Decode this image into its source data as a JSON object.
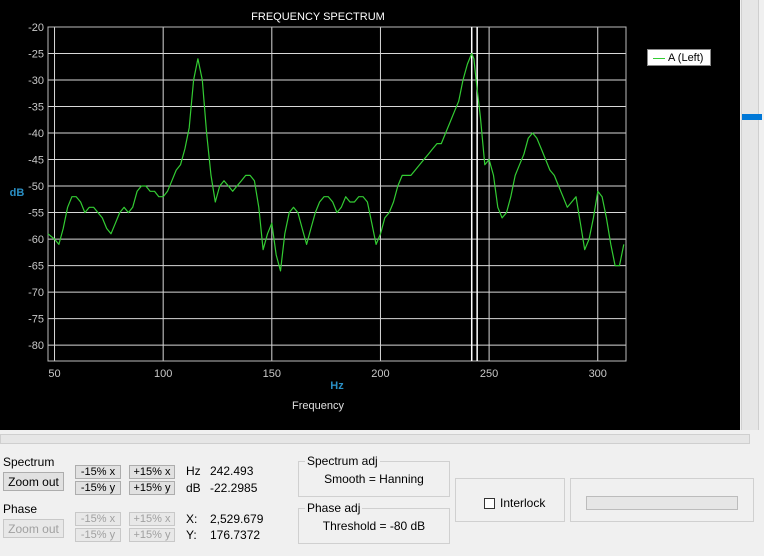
{
  "chart_data": {
    "type": "line",
    "title": "FREQUENCY SPECTRUM",
    "xlabel": "Frequency",
    "x_unit": "Hz",
    "ylabel": "dB",
    "xlim": [
      47,
      313
    ],
    "ylim": [
      -83,
      -20
    ],
    "x_ticks": [
      50,
      100,
      150,
      200,
      250,
      300
    ],
    "y_ticks": [
      -20,
      -25,
      -30,
      -35,
      -40,
      -45,
      -50,
      -55,
      -60,
      -65,
      -70,
      -75,
      -80
    ],
    "grid": true,
    "legend_position": "top-right",
    "cursor_x": [
      242.0,
      244.5
    ],
    "series": [
      {
        "name": "A (Left)",
        "color": "#33cc33",
        "x": [
          47,
          50,
          52,
          54,
          56,
          58,
          60,
          62,
          64,
          66,
          68,
          70,
          72,
          74,
          76,
          78,
          80,
          82,
          84,
          86,
          88,
          90,
          92,
          94,
          96,
          98,
          100,
          102,
          104,
          106,
          108,
          110,
          112,
          114,
          116,
          118,
          120,
          122,
          124,
          126,
          128,
          130,
          132,
          134,
          136,
          138,
          140,
          142,
          144,
          146,
          148,
          150,
          152,
          154,
          156,
          158,
          160,
          162,
          164,
          166,
          168,
          170,
          172,
          174,
          176,
          178,
          180,
          182,
          184,
          186,
          188,
          190,
          192,
          194,
          196,
          198,
          200,
          202,
          204,
          206,
          208,
          210,
          212,
          214,
          216,
          218,
          220,
          222,
          224,
          226,
          228,
          230,
          232,
          234,
          236,
          238,
          240,
          242,
          243,
          244,
          246,
          248,
          250,
          252,
          254,
          256,
          258,
          260,
          262,
          264,
          266,
          268,
          270,
          272,
          274,
          276,
          278,
          280,
          282,
          284,
          286,
          288,
          290,
          292,
          294,
          296,
          298,
          300,
          302,
          304,
          306,
          308,
          310,
          312
        ],
        "y": [
          -59,
          -60,
          -61,
          -58,
          -54,
          -52,
          -52,
          -53,
          -55,
          -54,
          -54,
          -55,
          -56,
          -58,
          -59,
          -57,
          -55,
          -54,
          -55,
          -54,
          -51,
          -50,
          -50,
          -51,
          -51,
          -52,
          -52,
          -51,
          -49,
          -47,
          -46,
          -43,
          -39,
          -30,
          -26,
          -30,
          -40,
          -48,
          -53,
          -50,
          -49,
          -50,
          -51,
          -50,
          -49,
          -48,
          -48,
          -49,
          -54,
          -62,
          -59,
          -57,
          -63,
          -66,
          -59,
          -55,
          -54,
          -55,
          -58,
          -61,
          -58,
          -55,
          -53,
          -52,
          -52,
          -53,
          -55,
          -54,
          -52,
          -53,
          -53,
          -52,
          -52,
          -53,
          -57,
          -61,
          -59,
          -56,
          -55,
          -53,
          -50,
          -48,
          -48,
          -48,
          -47,
          -46,
          -45,
          -44,
          -43,
          -42,
          -42,
          -40,
          -38,
          -36,
          -34,
          -30,
          -27,
          -25,
          -26,
          -30,
          -37,
          -46,
          -45,
          -48,
          -54,
          -56,
          -55,
          -52,
          -48,
          -46,
          -44,
          -41,
          -40,
          -41,
          -43,
          -45,
          -47,
          -48,
          -50,
          -52,
          -54,
          -53,
          -52,
          -57,
          -62,
          -60,
          -56,
          -51,
          -52,
          -56,
          -61,
          -65,
          -65,
          -61
        ]
      }
    ]
  },
  "controls": {
    "spectrum": {
      "label": "Spectrum",
      "zoom_out": "Zoom out",
      "x_minus": "-15% x",
      "x_plus": "+15% x",
      "y_minus": "-15% y",
      "y_plus": "+15% y",
      "hz_label": "Hz",
      "hz_value": "242.493",
      "db_label": "dB",
      "db_value": "-22.2985"
    },
    "phase": {
      "label": "Phase",
      "zoom_out": "Zoom out",
      "x_minus": "-15% x",
      "x_plus": "+15% x",
      "y_minus": "-15% y",
      "y_plus": "+15% y",
      "x_label": "X:",
      "x_value": "2,529.679",
      "y_label": "Y:",
      "y_value": "176.7372"
    },
    "spectrum_adj": {
      "title": "Spectrum adj",
      "value": "Smooth = Hanning"
    },
    "phase_adj": {
      "title": "Phase adj",
      "value": "Threshold = -80 dB"
    },
    "interlock": {
      "label": "Interlock",
      "checked": false
    }
  }
}
